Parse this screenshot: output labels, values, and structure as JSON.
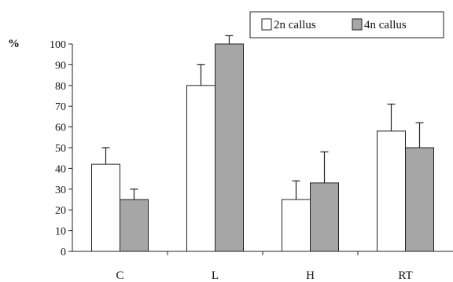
{
  "chart_data": {
    "type": "bar",
    "title": "",
    "xlabel": "",
    "ylabel": "%",
    "ylim": [
      0,
      100
    ],
    "yticks": [
      0,
      10,
      20,
      30,
      40,
      50,
      60,
      70,
      80,
      90,
      100
    ],
    "categories": [
      "C",
      "L",
      "H",
      "RT"
    ],
    "series": [
      {
        "name": "2n callus",
        "color": "#ffffff",
        "values": [
          42,
          80,
          25,
          58
        ],
        "errors": [
          8,
          10,
          9,
          13
        ]
      },
      {
        "name": "4n callus",
        "color": "#a6a6a6",
        "values": [
          25,
          100,
          33,
          50
        ],
        "errors": [
          5,
          4,
          15,
          12
        ]
      }
    ],
    "grid": false,
    "legend": "top-right",
    "error_bars": true
  }
}
